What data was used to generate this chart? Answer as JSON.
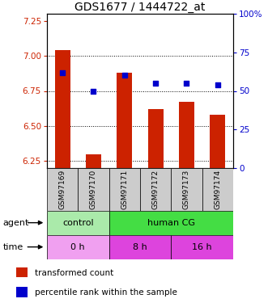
{
  "title": "GDS1677 / 1444722_at",
  "samples": [
    "GSM97169",
    "GSM97170",
    "GSM97171",
    "GSM97172",
    "GSM97173",
    "GSM97174"
  ],
  "bar_values": [
    7.04,
    6.3,
    6.88,
    6.62,
    6.67,
    6.58
  ],
  "dot_values": [
    62,
    50,
    60,
    55,
    55,
    54
  ],
  "ylim_left": [
    6.2,
    7.3
  ],
  "ylim_right": [
    0,
    100
  ],
  "yticks_left": [
    6.25,
    6.5,
    6.75,
    7.0,
    7.25
  ],
  "yticks_right": [
    0,
    25,
    50,
    75,
    100
  ],
  "ytick_labels_right": [
    "0",
    "25",
    "50",
    "75",
    "100%"
  ],
  "bar_color": "#cc2200",
  "dot_color": "#0000cc",
  "bar_bottom": 6.2,
  "agent_labels": [
    {
      "text": "control",
      "start": 0,
      "end": 2,
      "color": "#aaeaaa"
    },
    {
      "text": "human CG",
      "start": 2,
      "end": 6,
      "color": "#44dd44"
    }
  ],
  "time_labels": [
    {
      "text": "0 h",
      "start": 0,
      "end": 2,
      "color": "#f0a0f0"
    },
    {
      "text": "8 h",
      "start": 2,
      "end": 4,
      "color": "#dd44dd"
    },
    {
      "text": "16 h",
      "start": 4,
      "end": 6,
      "color": "#dd44dd"
    }
  ],
  "legend_red": "transformed count",
  "legend_blue": "percentile rank within the sample",
  "bar_color_label": "#cc2200",
  "dot_color_label": "#0000cc",
  "tick_fontsize": 7.5,
  "title_fontsize": 10
}
